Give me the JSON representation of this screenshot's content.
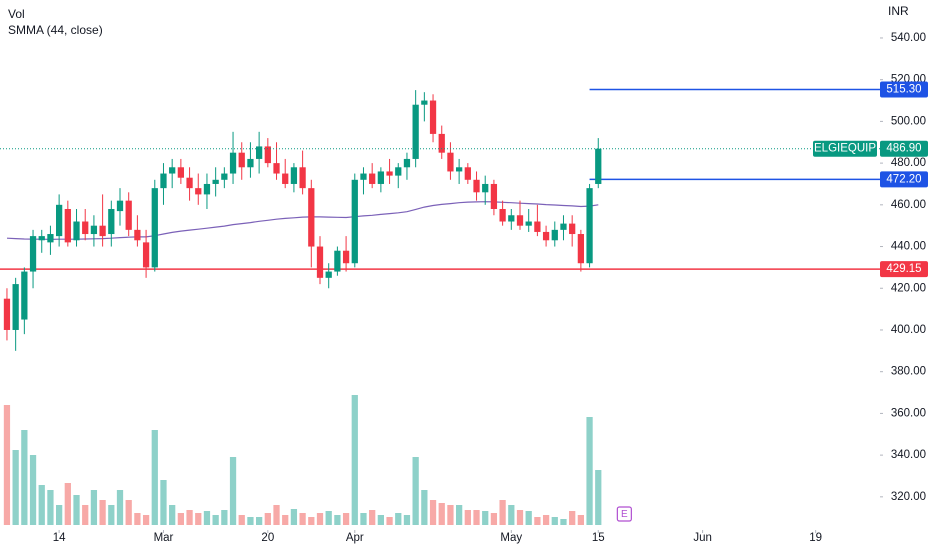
{
  "chart_data": {
    "type": "candlestick",
    "title": "Vol",
    "indicator_label": "SMMA (44, close)",
    "currency": "INR",
    "symbol": "ELGIEQUIP",
    "up_color": "#089981",
    "down_color": "#f23645",
    "volume_up_color": "#8ed1c9",
    "volume_down_color": "#f7a9a7",
    "open": [
      415,
      400,
      405,
      428,
      443,
      442,
      445,
      458,
      443,
      452,
      446,
      450,
      446,
      457,
      462,
      448,
      442,
      430,
      468,
      475,
      478,
      473,
      468,
      465,
      470,
      472,
      475,
      485,
      478,
      482,
      488,
      480,
      475,
      470,
      478,
      468,
      440,
      425,
      428,
      438,
      432,
      472,
      475,
      470,
      476,
      474,
      478,
      482,
      508,
      510,
      494,
      485,
      476,
      478,
      472,
      466,
      470,
      458,
      452,
      455,
      450,
      452,
      447,
      443,
      448,
      451,
      446,
      432,
      470
    ],
    "high": [
      420,
      425,
      430,
      448,
      448,
      450,
      465,
      462,
      458,
      458,
      455,
      465,
      462,
      468,
      466,
      455,
      448,
      472,
      480,
      482,
      482,
      478,
      475,
      475,
      478,
      478,
      495,
      490,
      490,
      495,
      492,
      490,
      482,
      480,
      486,
      472,
      445,
      432,
      440,
      445,
      475,
      478,
      480,
      478,
      482,
      480,
      485,
      515,
      514,
      513,
      498,
      490,
      482,
      480,
      476,
      474,
      472,
      462,
      458,
      462,
      458,
      460,
      450,
      452,
      455,
      455,
      448,
      470,
      492
    ],
    "low": [
      395,
      390,
      398,
      420,
      437,
      436,
      440,
      440,
      440,
      443,
      440,
      440,
      440,
      450,
      445,
      440,
      425,
      428,
      460,
      468,
      470,
      462,
      460,
      458,
      464,
      468,
      470,
      472,
      473,
      475,
      478,
      472,
      468,
      466,
      465,
      430,
      422,
      420,
      426,
      428,
      430,
      465,
      468,
      466,
      470,
      468,
      472,
      478,
      500,
      490,
      482,
      472,
      470,
      470,
      462,
      460,
      455,
      450,
      448,
      448,
      447,
      445,
      440,
      440,
      443,
      440,
      428,
      430,
      468
    ],
    "close": [
      400,
      422,
      428,
      445,
      445,
      446,
      460,
      442,
      452,
      446,
      450,
      445,
      458,
      462,
      448,
      443,
      430,
      468,
      475,
      478,
      473,
      468,
      465,
      470,
      472,
      475,
      485,
      478,
      482,
      488,
      480,
      475,
      470,
      478,
      468,
      440,
      425,
      428,
      438,
      432,
      472,
      475,
      470,
      476,
      474,
      478,
      482,
      508,
      510,
      494,
      485,
      476,
      478,
      472,
      466,
      470,
      458,
      452,
      455,
      450,
      452,
      447,
      443,
      448,
      451,
      446,
      432,
      468,
      486.9
    ],
    "close_label": "486.90",
    "volume": [
      120,
      75,
      95,
      70,
      40,
      35,
      20,
      42,
      30,
      20,
      35,
      25,
      20,
      35,
      25,
      12,
      10,
      95,
      45,
      20,
      12,
      15,
      12,
      14,
      10,
      15,
      68,
      10,
      8,
      8,
      12,
      20,
      10,
      16,
      12,
      8,
      12,
      14,
      10,
      12,
      130,
      12,
      15,
      10,
      8,
      12,
      10,
      68,
      35,
      25,
      22,
      20,
      20,
      15,
      15,
      14,
      12,
      25,
      20,
      15,
      14,
      8,
      10,
      8,
      6,
      14,
      10,
      108,
      55
    ],
    "volume_lim": [
      0,
      400
    ],
    "smma": {
      "color": "#7b61b8",
      "values": [
        444,
        443.8,
        443.6,
        443.5,
        443.5,
        443.4,
        443.5,
        443.5,
        443.5,
        443.6,
        443.7,
        443.8,
        444,
        444.3,
        444.5,
        444.6,
        444.6,
        445.2,
        446,
        446.8,
        447.4,
        447.9,
        448.3,
        448.8,
        449.3,
        449.8,
        450.5,
        451,
        451.5,
        452.1,
        452.6,
        453.1,
        453.5,
        453.8,
        454.1,
        454.2,
        454.2,
        454.1,
        454,
        453.9,
        454.3,
        454.7,
        455,
        455.4,
        455.8,
        456.2,
        456.7,
        457.8,
        458.9,
        459.7,
        460.2,
        460.6,
        461,
        461.3,
        461.4,
        461.5,
        461.4,
        461.2,
        461,
        460.8,
        460.6,
        460.4,
        460.1,
        459.9,
        459.7,
        459.5,
        459.2,
        459.4,
        460.0
      ]
    },
    "levels": [
      {
        "value": 515.3,
        "label": "515.30",
        "color": "#1e53e5",
        "start": 67
      },
      {
        "value": 472.2,
        "label": "472.20",
        "color": "#1e53e5",
        "start": 67
      },
      {
        "value": 429.15,
        "label": "429.15",
        "color": "#f23645",
        "start": -0.8
      }
    ],
    "earnings": {
      "label": "E",
      "x": 71
    },
    "xlim": [
      -0.8,
      100.4
    ],
    "xticks": [
      {
        "value": 6,
        "label": "14"
      },
      {
        "value": 18,
        "label": "Mar"
      },
      {
        "value": 30,
        "label": "20"
      },
      {
        "value": 40,
        "label": "Apr"
      },
      {
        "value": 58,
        "label": "May"
      },
      {
        "value": 68,
        "label": "15"
      },
      {
        "value": 80,
        "label": "Jun"
      },
      {
        "value": 93,
        "label": "19"
      }
    ],
    "ylim": [
      304.1,
      558.2
    ],
    "yticks": [
      {
        "value": 320,
        "label": "320.00"
      },
      {
        "value": 340,
        "label": "340.00"
      },
      {
        "value": 360,
        "label": "360.00"
      },
      {
        "value": 380,
        "label": "380.00"
      },
      {
        "value": 400,
        "label": "400.00"
      },
      {
        "value": 420,
        "label": "420.00"
      },
      {
        "value": 440,
        "label": "440.00"
      },
      {
        "value": 460,
        "label": "460.00"
      },
      {
        "value": 480,
        "label": "480.00"
      },
      {
        "value": 500,
        "label": "500.00"
      },
      {
        "value": 520,
        "label": "520.00"
      },
      {
        "value": 540,
        "label": "540.00"
      }
    ]
  }
}
